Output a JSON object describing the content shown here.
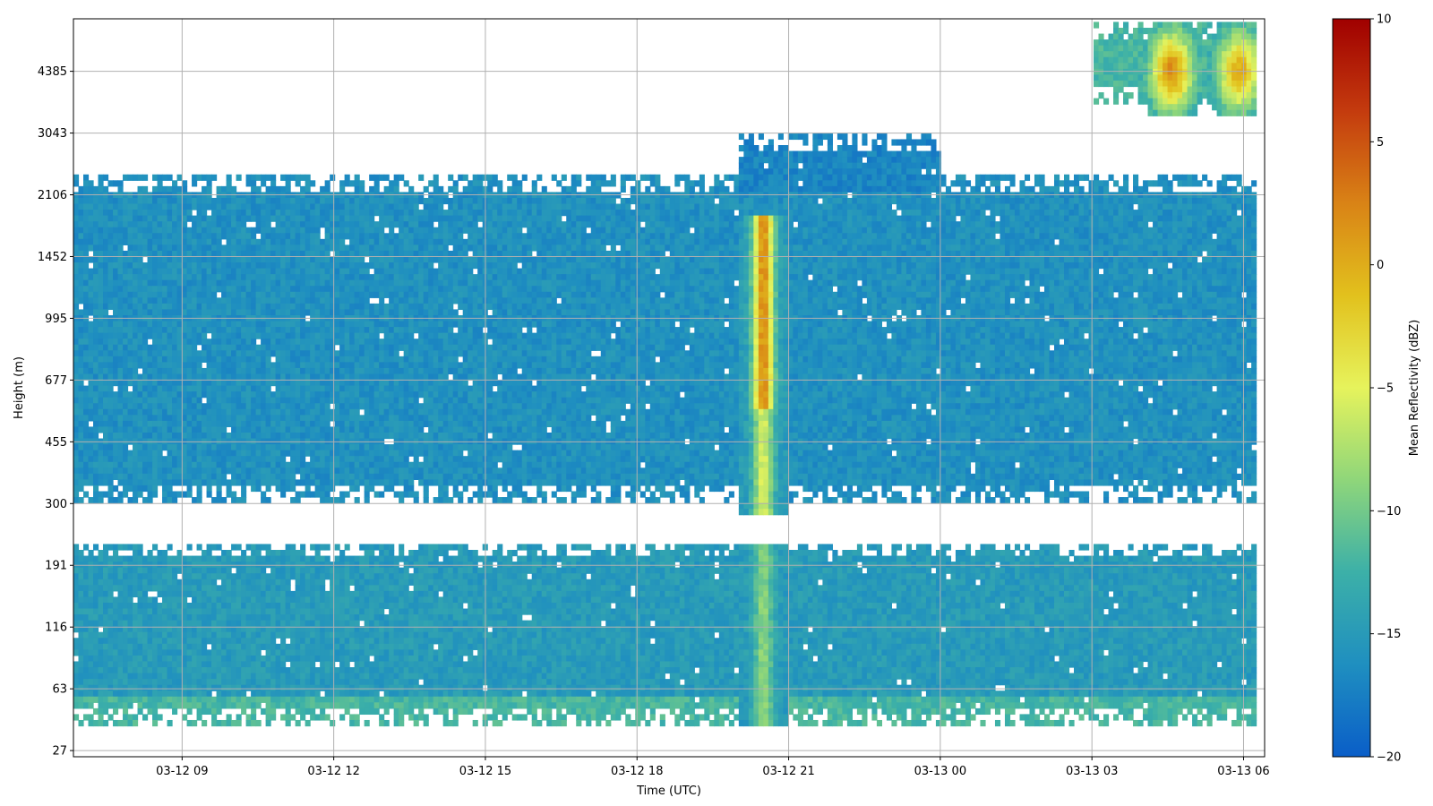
{
  "chart_data": {
    "type": "heatmap",
    "xlabel": "Time (UTC)",
    "ylabel": "Height (m)",
    "colorbar_label": "Mean Reflectivity (dBZ)",
    "colormap": [
      "#0a5ec8",
      "#1f8fc0",
      "#3cb0a8",
      "#8fd67a",
      "#e6f35c",
      "#e2c11d",
      "#d98316",
      "#c43b0e",
      "#a00000"
    ],
    "clim": [
      -20,
      10
    ],
    "colorbar_ticks": [
      "−20",
      "−15",
      "−10",
      "−5",
      "0",
      "5",
      "10"
    ],
    "grid": true,
    "x_ticks": [
      "03-12 09",
      "03-12 12",
      "03-12 15",
      "03-12 18",
      "03-12 21",
      "03-13 00",
      "03-13 03",
      "03-13 06"
    ],
    "y_ticks": [
      "27",
      "63",
      "116",
      "191",
      "300",
      "455",
      "677",
      "995",
      "1452",
      "2106",
      "3043",
      "4385"
    ],
    "x_range": [
      "03-12 06:51",
      "03-13 06:25"
    ],
    "y_range_index": [
      -0.1,
      11.85
    ],
    "background_dbz": -16,
    "layers": [
      {
        "name": "boundary layer",
        "y": [
          9.3,
          4.0
        ],
        "t": [
          "03-12 06:51",
          "03-13 06:15"
        ],
        "dbz": -16
      },
      {
        "name": "near-surface bright band",
        "y": [
          1.2,
          0.4
        ],
        "t": [
          "03-12 06:51",
          "03-13 06:15"
        ],
        "dbz": -12
      },
      {
        "name": "lower cloud",
        "y": [
          3.5,
          0.4
        ],
        "t": [
          "03-12 06:51",
          "03-13 06:15"
        ],
        "dbz": -15
      },
      {
        "name": "mid cloud",
        "y": [
          8.0,
          7.0
        ],
        "t": [
          "03-12 15:00",
          "03-13 06:15"
        ],
        "dbz": -16
      },
      {
        "name": "upper cloud",
        "y": [
          10.0,
          8.0
        ],
        "t": [
          "03-12 20:00",
          "03-13 00:00"
        ],
        "dbz": -17
      },
      {
        "name": "high cloud",
        "y": [
          11.8,
          10.5
        ],
        "t": [
          "03-13 03:00",
          "03-13 06:15"
        ],
        "dbz": -12
      }
    ],
    "features": [
      {
        "name": "precipitation shaft",
        "t": "03-12 20:30",
        "y": [
          0.0,
          8.7
        ],
        "peak_dbz": 2
      },
      {
        "name": "upper echo core 1",
        "t": "03-13 04:35",
        "y": 11.0,
        "peak_dbz": 2
      },
      {
        "name": "upper echo core 2",
        "t": "03-13 05:55",
        "y": 11.0,
        "peak_dbz": 0
      }
    ]
  }
}
